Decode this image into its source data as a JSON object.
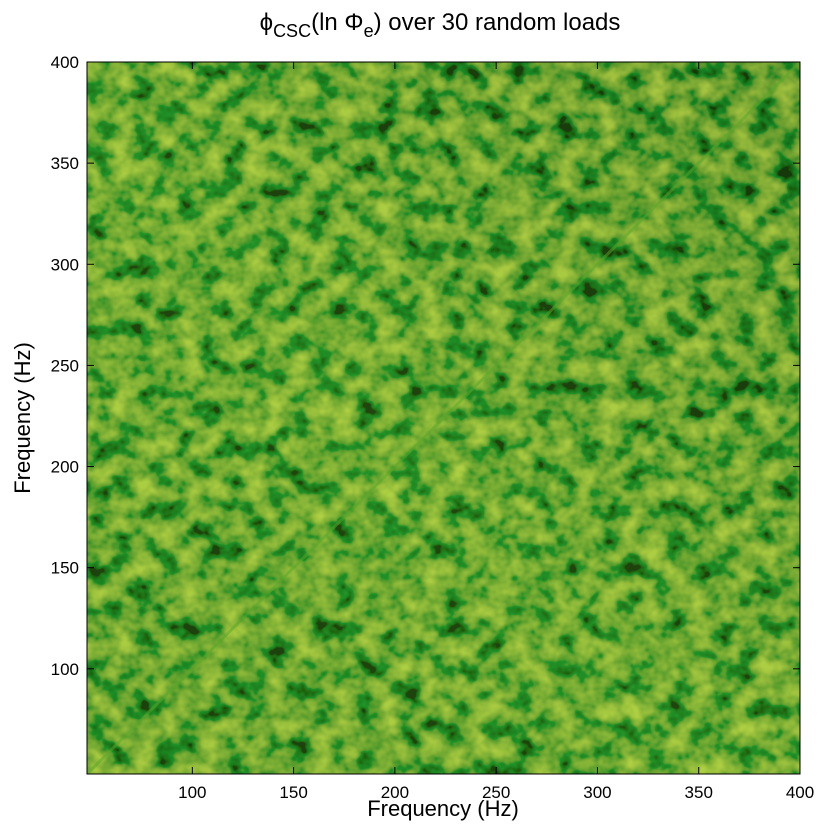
{
  "chart_data": {
    "type": "heatmap",
    "title_parts": [
      "ϕ",
      "CSC",
      "(ln Φ",
      "e",
      ") over 30 random loads"
    ],
    "x_label": "Frequency (Hz)",
    "y_label": "Frequency (Hz)",
    "xlim": [
      48,
      400
    ],
    "ylim": [
      48,
      400
    ],
    "xticks": [
      100,
      150,
      200,
      250,
      300,
      350,
      400
    ],
    "yticks": [
      100,
      150,
      200,
      250,
      300,
      350,
      400
    ]
  }
}
